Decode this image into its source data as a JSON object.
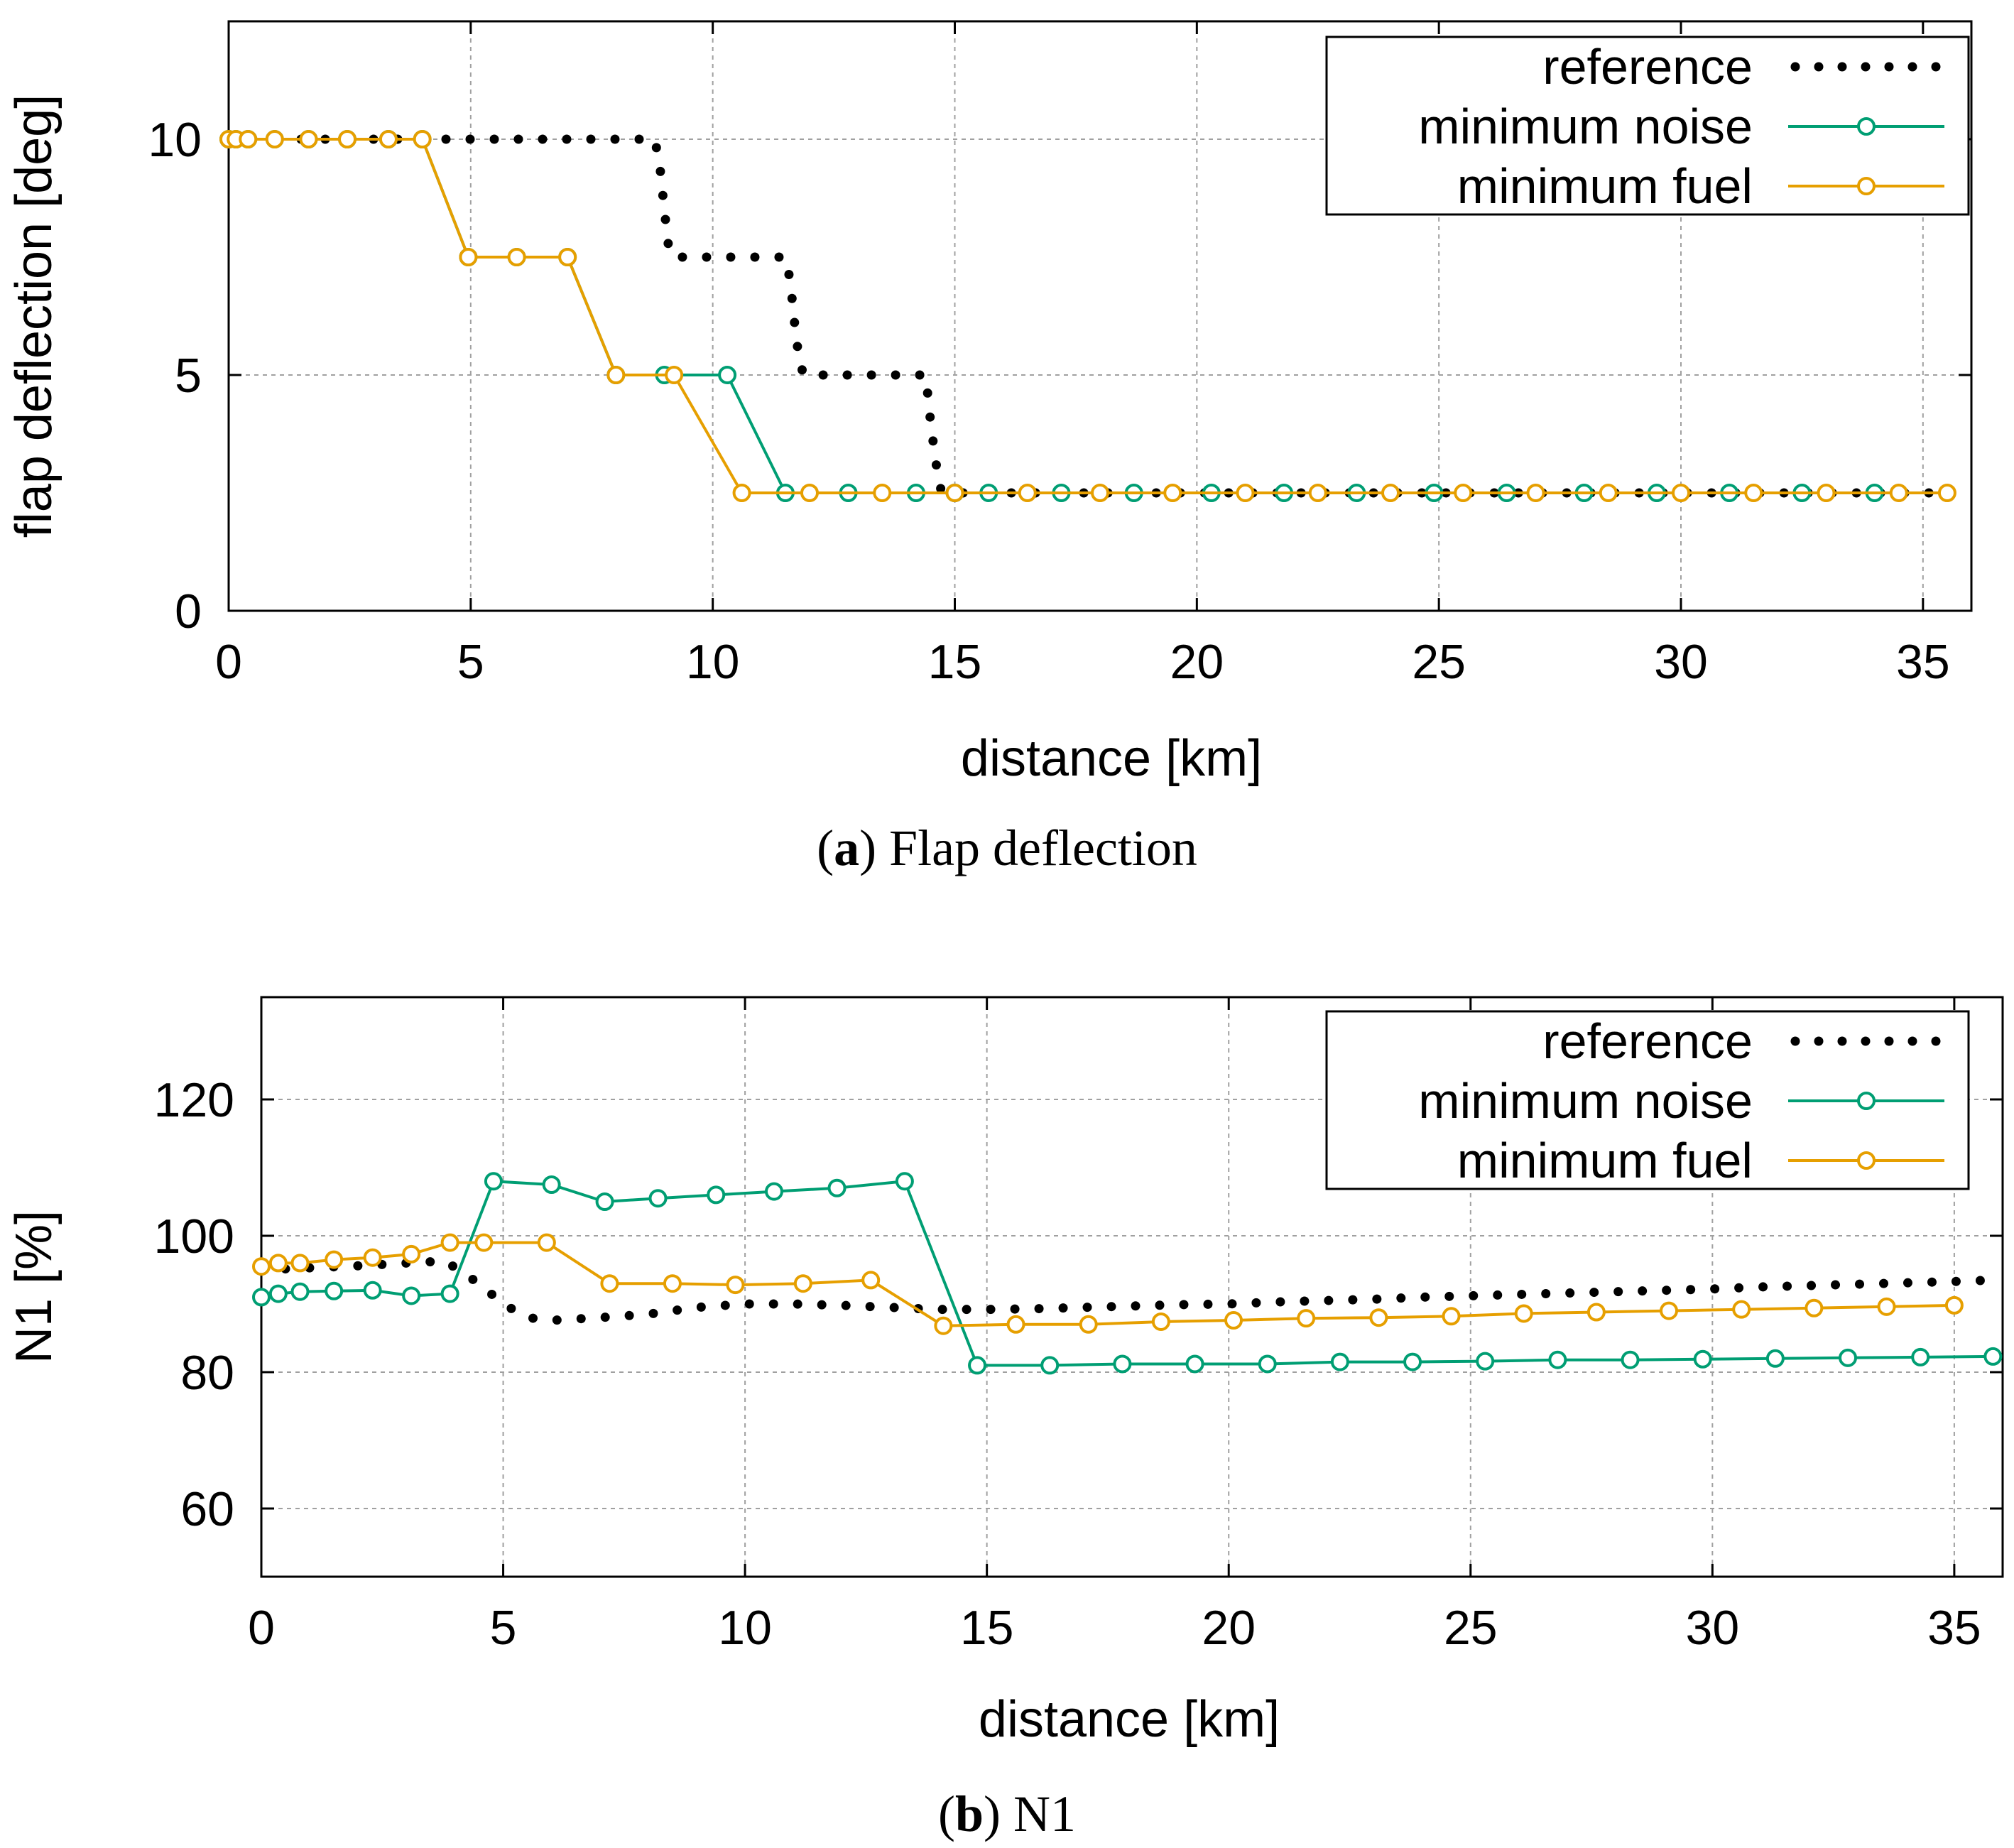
{
  "colors": {
    "reference": "#000000",
    "minimum_noise": "#009e73",
    "minimum_fuel": "#e69f00",
    "grid": "#a0a0a0"
  },
  "chart_data": [
    {
      "type": "line",
      "caption_letter": "a",
      "caption_text": "Flap deflection",
      "xlabel": "distance [km]",
      "ylabel": "flap deflection [deg]",
      "xlim": [
        0,
        36
      ],
      "ylim": [
        0,
        12.5
      ],
      "xticks": [
        0,
        5,
        10,
        15,
        20,
        25,
        30,
        35
      ],
      "yticks": [
        0,
        5,
        10
      ],
      "grid": true,
      "legend_position": "top-right",
      "series": [
        {
          "name": "reference",
          "key": "reference",
          "style": "dots",
          "x": [
            0,
            2,
            4,
            6,
            8,
            8.8,
            8.9,
            9.0,
            9.1,
            9.2,
            9.4,
            10,
            11,
            11.5,
            11.6,
            11.7,
            11.8,
            11.9,
            12,
            13,
            14,
            14.4,
            14.5,
            14.6,
            14.7,
            14.8,
            15,
            20,
            25,
            30,
            35.5
          ],
          "y": [
            10,
            10,
            10,
            10,
            10,
            10,
            9.5,
            8.5,
            7.6,
            7.5,
            7.5,
            7.5,
            7.5,
            7.5,
            7,
            6,
            5.2,
            5,
            5,
            5,
            5,
            5,
            4,
            3.2,
            2.6,
            2.5,
            2.5,
            2.5,
            2.5,
            2.5,
            2.5
          ]
        },
        {
          "name": "minimum noise",
          "key": "minimum_noise",
          "style": "line-circles",
          "x": [
            0,
            0.15,
            0.4,
            0.95,
            1.65,
            2.45,
            3.3,
            4.0,
            4.95,
            5.95,
            7.0,
            8.0,
            9.0,
            10.3,
            11.5,
            12.8,
            14.2,
            15.0,
            15.7,
            17.2,
            18.7,
            20.3,
            21.8,
            23.3,
            24.9,
            26.4,
            28.0,
            29.5,
            31.0,
            32.5,
            34.0
          ],
          "y": [
            10,
            10,
            10,
            10,
            10,
            10,
            10,
            10,
            7.5,
            7.5,
            7.5,
            5,
            5,
            5,
            2.5,
            2.5,
            2.5,
            2.5,
            2.5,
            2.5,
            2.5,
            2.5,
            2.5,
            2.5,
            2.5,
            2.5,
            2.5,
            2.5,
            2.5,
            2.5,
            2.5
          ]
        },
        {
          "name": "minimum fuel",
          "key": "minimum_fuel",
          "style": "line-circles",
          "x": [
            0,
            0.15,
            0.4,
            0.95,
            1.65,
            2.45,
            3.3,
            4.0,
            4.95,
            5.95,
            7.0,
            8.0,
            9.2,
            10.6,
            12.0,
            13.5,
            15.0,
            16.5,
            18.0,
            19.5,
            21.0,
            22.5,
            24.0,
            25.5,
            27.0,
            28.5,
            30.0,
            31.5,
            33.0,
            34.5,
            35.5
          ],
          "y": [
            10,
            10,
            10,
            10,
            10,
            10,
            10,
            10,
            7.5,
            7.5,
            7.5,
            5,
            5,
            2.5,
            2.5,
            2.5,
            2.5,
            2.5,
            2.5,
            2.5,
            2.5,
            2.5,
            2.5,
            2.5,
            2.5,
            2.5,
            2.5,
            2.5,
            2.5,
            2.5,
            2.5
          ]
        }
      ]
    },
    {
      "type": "line",
      "caption_letter": "b",
      "caption_text": "N1",
      "xlabel": "distance [km]",
      "ylabel": "N1 [%]",
      "xlim": [
        0,
        36
      ],
      "ylim": [
        50,
        135
      ],
      "xticks": [
        0,
        5,
        10,
        15,
        20,
        25,
        30,
        35
      ],
      "yticks": [
        60,
        80,
        100,
        120
      ],
      "grid": true,
      "legend_position": "top-right",
      "series": [
        {
          "name": "reference",
          "key": "reference",
          "style": "dots",
          "x": [
            0,
            1,
            2,
            3,
            3.8,
            4.5,
            5,
            5.5,
            6,
            7,
            8,
            9,
            10,
            11,
            12,
            13,
            14,
            15,
            16,
            17,
            18,
            19,
            20,
            21,
            22,
            23,
            24,
            25,
            26,
            27,
            28,
            29,
            30,
            31,
            32,
            33,
            34,
            35,
            35.8
          ],
          "y": [
            95,
            95.3,
            95.6,
            96,
            96.3,
            93,
            90,
            88,
            87.6,
            88,
            88.5,
            89.5,
            90,
            90,
            89.8,
            89.5,
            89.2,
            89.2,
            89.3,
            89.5,
            89.7,
            89.9,
            90,
            90.3,
            90.5,
            90.7,
            91,
            91.2,
            91.4,
            91.6,
            91.8,
            92,
            92.2,
            92.5,
            92.7,
            92.9,
            93.1,
            93.3,
            93.5
          ]
        },
        {
          "name": "minimum noise",
          "key": "minimum_noise",
          "style": "line-circles",
          "x": [
            0,
            0.35,
            0.8,
            1.5,
            2.3,
            3.1,
            3.9,
            4.8,
            6.0,
            7.1,
            8.2,
            9.4,
            10.6,
            11.9,
            13.3,
            14.8,
            16.3,
            17.8,
            19.3,
            20.8,
            22.3,
            23.8,
            25.3,
            26.8,
            28.3,
            29.8,
            31.3,
            32.8,
            34.3,
            35.8
          ],
          "y": [
            91,
            91.5,
            91.8,
            91.9,
            92,
            91.2,
            91.5,
            108,
            107.5,
            105,
            105.5,
            106,
            106.5,
            107,
            108,
            81,
            81,
            81.2,
            81.2,
            81.2,
            81.5,
            81.5,
            81.6,
            81.8,
            81.8,
            81.9,
            82,
            82.1,
            82.2,
            82.3
          ]
        },
        {
          "name": "minimum fuel",
          "key": "minimum_fuel",
          "style": "line-circles",
          "x": [
            0,
            0.35,
            0.8,
            1.5,
            2.3,
            3.1,
            3.9,
            4.6,
            5.9,
            7.2,
            8.5,
            9.8,
            11.2,
            12.6,
            14.1,
            15.6,
            17.1,
            18.6,
            20.1,
            21.6,
            23.1,
            24.6,
            26.1,
            27.6,
            29.1,
            30.6,
            32.1,
            33.6,
            35.0
          ],
          "y": [
            95.5,
            96,
            96,
            96.5,
            96.8,
            97.3,
            99,
            99,
            99,
            93,
            93,
            92.8,
            93,
            93.5,
            86.8,
            87,
            87,
            87.4,
            87.6,
            87.9,
            88,
            88.2,
            88.6,
            88.8,
            89,
            89.2,
            89.4,
            89.6,
            89.8
          ]
        }
      ]
    }
  ]
}
